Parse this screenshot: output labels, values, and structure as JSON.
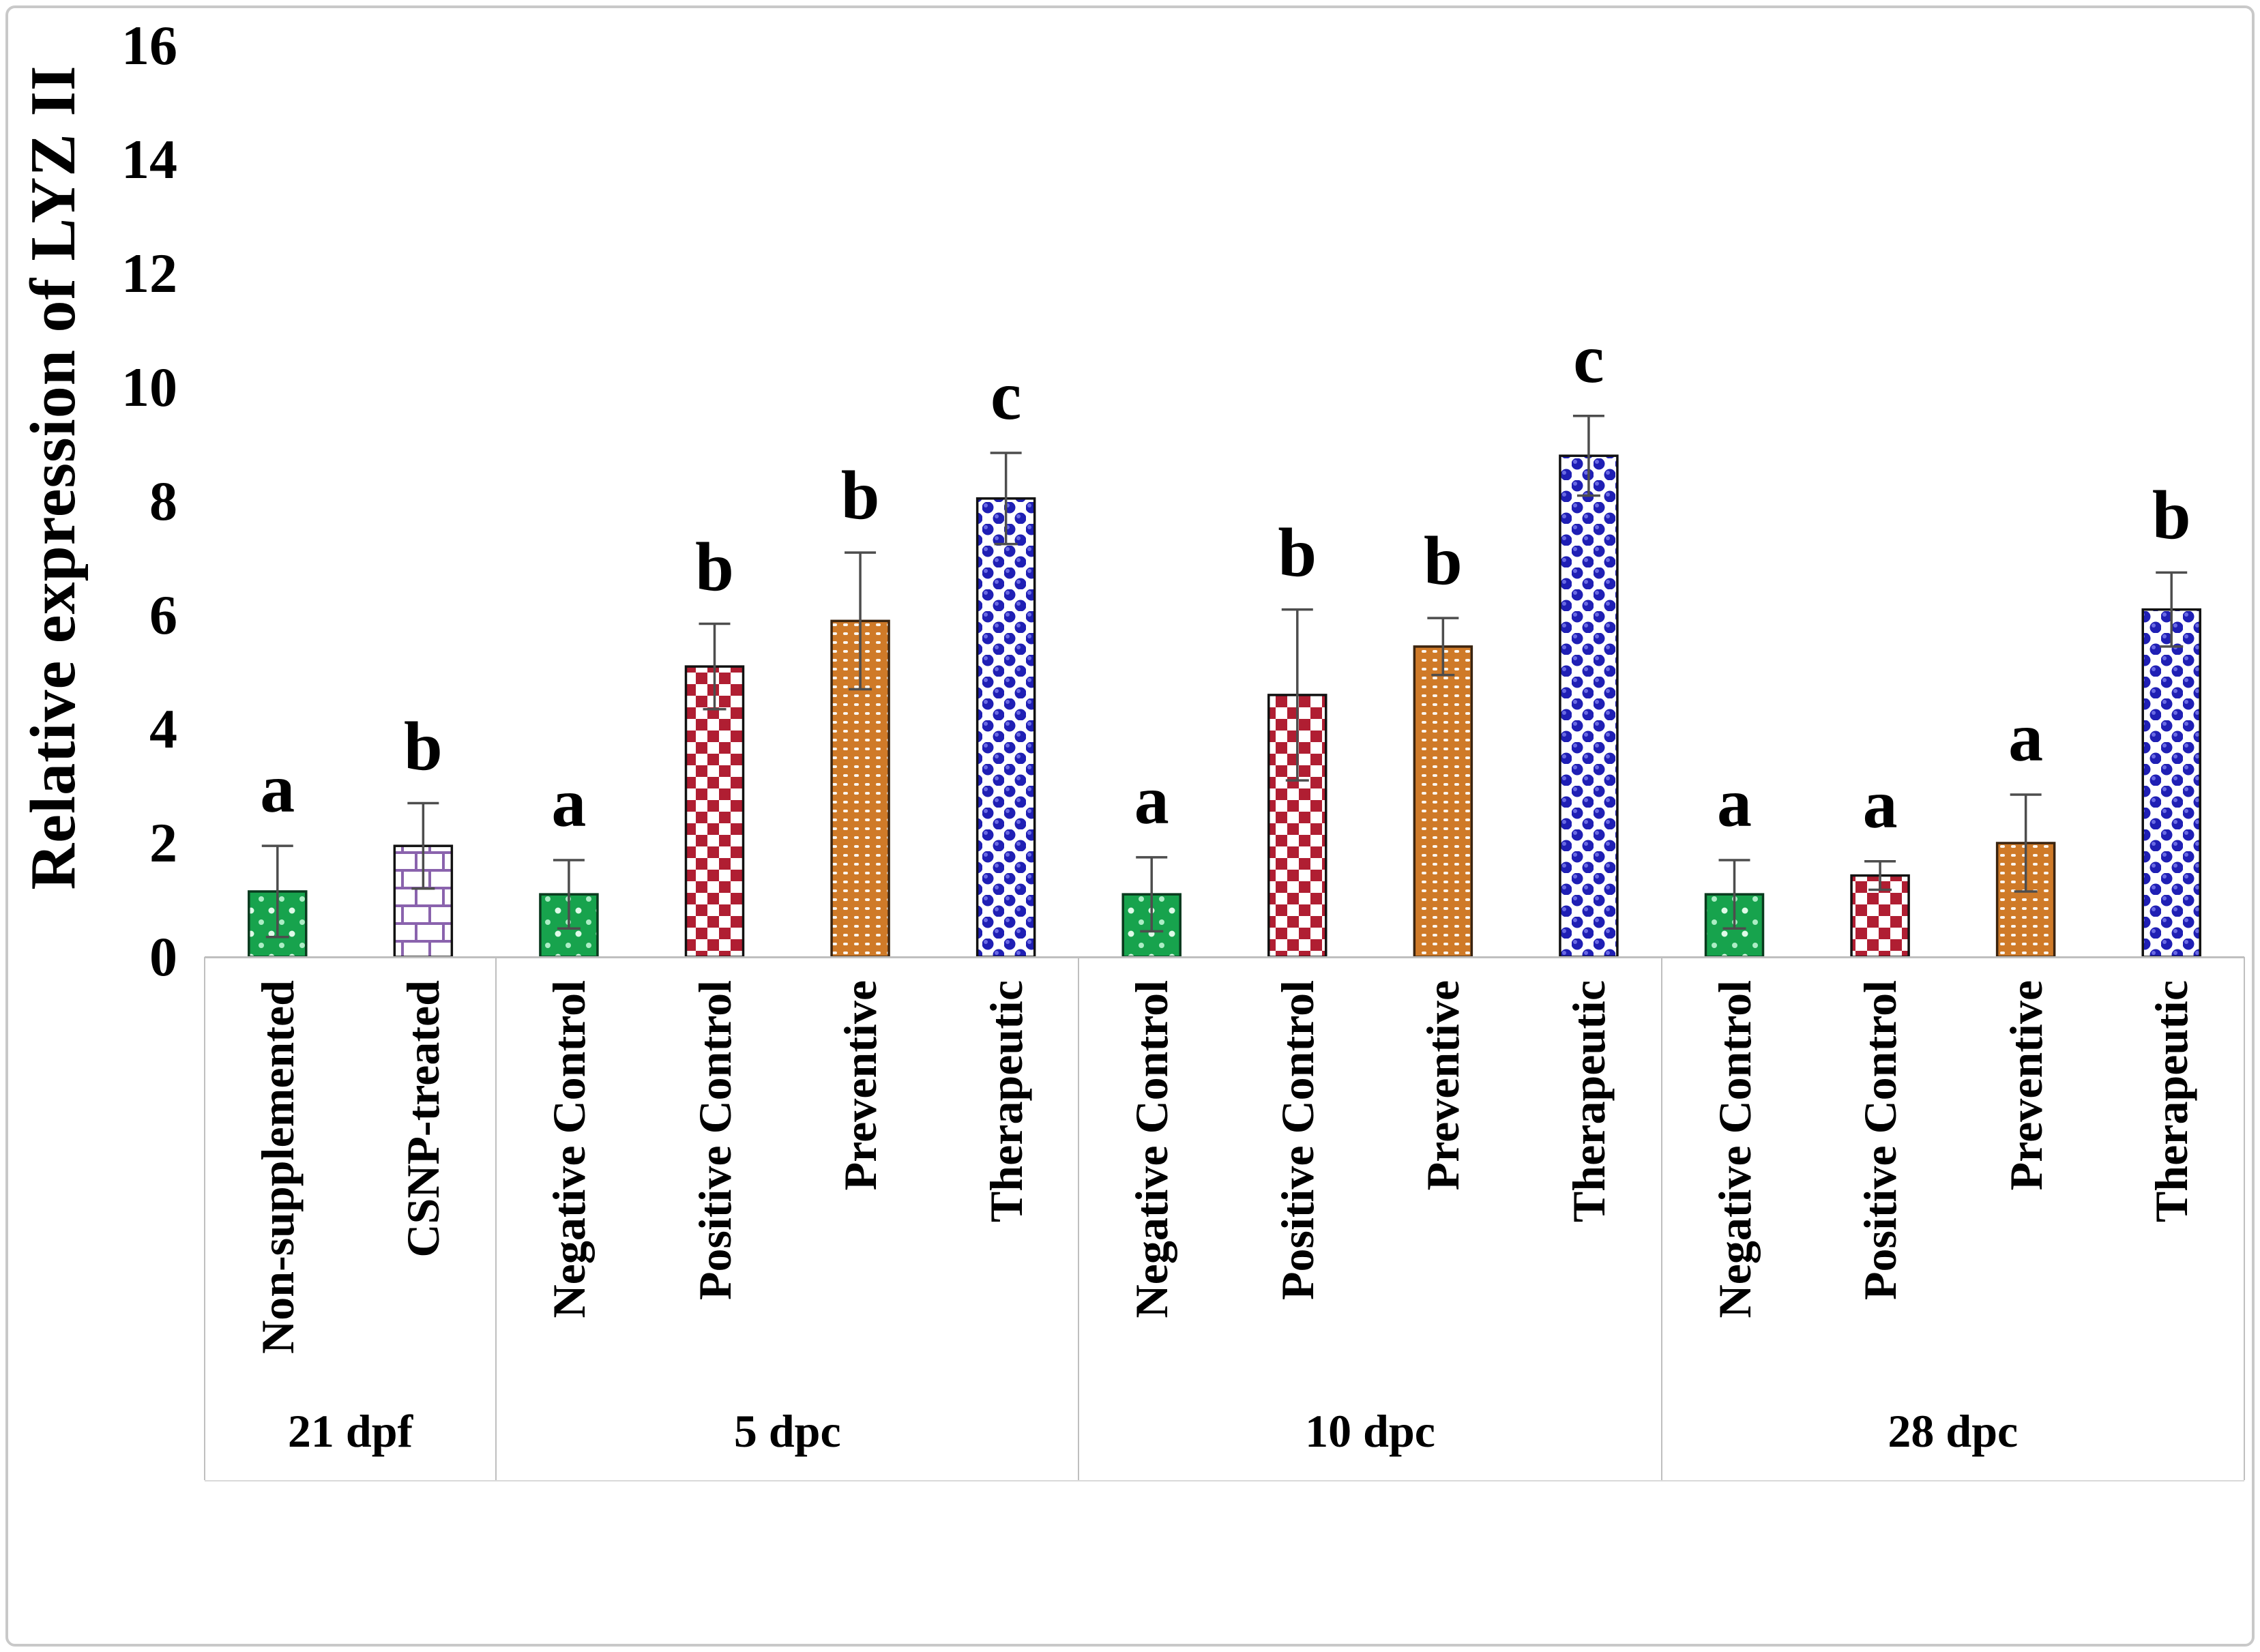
{
  "figure": {
    "y_axis_title": "Relative expression of LYZ II"
  },
  "chart_data": {
    "type": "bar",
    "title": "",
    "xlabel": "",
    "ylabel": "Relative expression of LYZ II",
    "ylim": [
      0,
      16
    ],
    "ytick_step": 2,
    "ytick_labels": [
      "0",
      "2",
      "4",
      "6",
      "8",
      "10",
      "12",
      "14",
      "16"
    ],
    "grid": false,
    "legend": false,
    "error_bars": true,
    "significance_letters": true,
    "groups": [
      {
        "label": "21 dpf",
        "bars": [
          {
            "label": "Non-supplemented",
            "value": 1.15,
            "error": 0.8,
            "sig": "a",
            "style": "green-dots"
          },
          {
            "label": "CSNP-treated",
            "value": 1.95,
            "error": 0.75,
            "sig": "b",
            "style": "purple-brick"
          }
        ]
      },
      {
        "label": "5 dpc",
        "bars": [
          {
            "label": "Negative Control",
            "value": 1.1,
            "error": 0.6,
            "sig": "a",
            "style": "green-dots"
          },
          {
            "label": "Positive Control",
            "value": 5.1,
            "error": 0.75,
            "sig": "b",
            "style": "red-check"
          },
          {
            "label": "Preventive",
            "value": 5.9,
            "error": 1.2,
            "sig": "b",
            "style": "orange-mesh"
          },
          {
            "label": "Therapeutic",
            "value": 8.05,
            "error": 0.8,
            "sig": "c",
            "style": "blue-dots"
          }
        ]
      },
      {
        "label": "10 dpc",
        "bars": [
          {
            "label": "Negative Control",
            "value": 1.1,
            "error": 0.65,
            "sig": "a",
            "style": "green-dots"
          },
          {
            "label": "Positive Control",
            "value": 4.6,
            "error": 1.5,
            "sig": "b",
            "style": "red-check"
          },
          {
            "label": "Preventive",
            "value": 5.45,
            "error": 0.5,
            "sig": "b",
            "style": "orange-mesh"
          },
          {
            "label": "Therapeutic",
            "value": 8.8,
            "error": 0.7,
            "sig": "c",
            "style": "blue-dots"
          }
        ]
      },
      {
        "label": "28 dpc",
        "bars": [
          {
            "label": "Negative Control",
            "value": 1.1,
            "error": 0.6,
            "sig": "a",
            "style": "green-dots"
          },
          {
            "label": "Positive Control",
            "value": 1.43,
            "error": 0.25,
            "sig": "a",
            "style": "red-check"
          },
          {
            "label": "Preventive",
            "value": 2.0,
            "error": 0.85,
            "sig": "a",
            "style": "orange-mesh"
          },
          {
            "label": "Therapeutic",
            "value": 6.1,
            "error": 0.65,
            "sig": "b",
            "style": "blue-dots"
          }
        ]
      }
    ],
    "colors": {
      "green_fill": "#17a34d",
      "green_border": "#0a3a1e",
      "brick_line": "#8a63ad",
      "brick_bg": "#ffffff",
      "red_fill": "#b01e32",
      "red_bg": "#ffffff",
      "orange_fill": "#cf7a28",
      "orange_border": "#3a2410",
      "blue_fill": "#1f1fb4",
      "blue_bg": "#ffffff",
      "bar_border": "#111111",
      "axis_line": "#bfbfbf",
      "error_bar": "#4d4d4d",
      "text": "#000000",
      "frame_border": "#c9c9c9"
    }
  }
}
